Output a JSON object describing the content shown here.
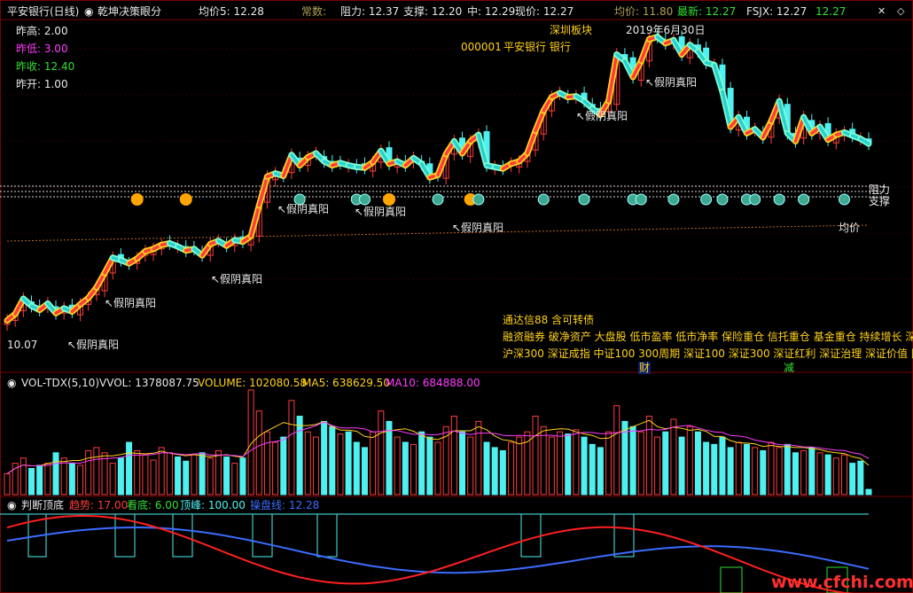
{
  "header": {
    "title": "平安银行(日线)",
    "indicator": "乾坤决策眼分",
    "avg5": "均价5: 12.28",
    "often": "常数:",
    "resist": "阻力: 12.37",
    "support": "支撑: 12.20",
    "mid": "中: 12.29",
    "price": "现价: 12.27",
    "avg": "均价: 11.80",
    "latest": "最新: 12.27",
    "fsjx": "FSJX: 12.27",
    "fsjx2": "12.27"
  },
  "info": {
    "high": "昨高: 2.00",
    "low": "昨低: 3.00",
    "close": "昨收: 12.40",
    "open": "昨开: 1.00"
  },
  "stock": {
    "code": "000001",
    "name": "平安银行 银行",
    "board": "深圳板块",
    "date": "2019年6月30日"
  },
  "annotations": {
    "fake": "↖假阴真阳",
    "start": "10.07",
    "resistance": "阻力",
    "support": "支撑",
    "avg": "均价"
  },
  "concepts": {
    "l1": "通达信88 含可转债",
    "l2": "融资融券 破净资产 大盘股 低市盈率 低市净率 保险重仓 信托重仓 基金重仓 持续增长 深",
    "l3": "沪深300 深证成指 中证100 300周期 深证100 深证300 深证红利 深证治理 深证价值 国",
    "cai": "财",
    "jian": "减"
  },
  "vol_panel": {
    "name": "VOL-TDX(5,10)",
    "vvol": "VVOL: 1378087.75",
    "volume": "VOLUME: 102080.58",
    "ma5": "MA5: 638629.50",
    "ma10": "MA10: 684888.00"
  },
  "judge_panel": {
    "name": "判断顶底",
    "trend": "趋势: 17.00",
    "bottom": "看底: 6.00",
    "top": "顶峰: 100.00",
    "line": "操盘线: 12.28"
  },
  "watermark": "www.cfchi.com",
  "colors": {
    "up": "#ff3c3c",
    "down": "#4ff0f0",
    "yellow": "#ffd21a"
  },
  "chart_data": {
    "type": "line",
    "price_close": [
      10.07,
      10.15,
      10.34,
      10.25,
      10.2,
      10.28,
      10.16,
      10.22,
      10.18,
      10.27,
      10.35,
      10.48,
      10.66,
      10.85,
      10.82,
      10.78,
      10.84,
      10.93,
      10.96,
      11.01,
      11.03,
      10.99,
      10.94,
      10.96,
      10.88,
      11.02,
      11.06,
      11.0,
      11.07,
      11.05,
      11.12,
      11.5,
      11.86,
      11.9,
      11.87,
      12.13,
      12.0,
      12.1,
      12.15,
      12.05,
      12.0,
      12.03,
      12.0,
      11.98,
      11.97,
      12.04,
      12.18,
      12.02,
      12.05,
      12.0,
      12.09,
      12.02,
      11.85,
      11.88,
      12.14,
      12.3,
      12.15,
      12.3,
      12.38,
      12.0,
      11.98,
      11.96,
      12.02,
      12.05,
      12.15,
      12.43,
      12.68,
      12.85,
      12.9,
      12.85,
      12.86,
      12.8,
      12.71,
      12.63,
      12.8,
      13.38,
      13.3,
      13.1,
      13.3,
      13.57,
      13.6,
      13.52,
      13.56,
      13.38,
      13.5,
      13.42,
      13.28,
      13.25,
      12.92,
      12.48,
      12.6,
      12.4,
      12.45,
      12.35,
      12.55,
      12.8,
      12.4,
      12.3,
      12.6,
      12.4,
      12.48,
      12.32,
      12.38,
      12.41,
      12.37,
      12.33,
      12.27
    ],
    "volume": [
      0.2,
      0.3,
      0.35,
      0.25,
      0.28,
      0.3,
      0.4,
      0.35,
      0.3,
      0.28,
      0.42,
      0.45,
      0.4,
      0.3,
      0.35,
      0.5,
      0.42,
      0.38,
      0.33,
      0.45,
      0.4,
      0.36,
      0.32,
      0.38,
      0.4,
      0.35,
      0.42,
      0.36,
      0.3,
      0.35,
      1.0,
      0.8,
      0.6,
      0.5,
      0.55,
      0.9,
      0.75,
      0.6,
      0.55,
      0.7,
      0.65,
      0.58,
      0.6,
      0.5,
      0.45,
      0.6,
      0.8,
      0.7,
      0.55,
      0.5,
      0.48,
      0.6,
      0.55,
      0.5,
      0.65,
      0.75,
      0.6,
      0.55,
      0.7,
      0.5,
      0.45,
      0.42,
      0.5,
      0.55,
      0.6,
      0.75,
      0.65,
      0.55,
      0.6,
      0.58,
      0.62,
      0.55,
      0.48,
      0.45,
      0.6,
      0.85,
      0.7,
      0.65,
      0.6,
      0.75,
      0.55,
      0.6,
      0.72,
      0.55,
      0.65,
      0.6,
      0.5,
      0.48,
      0.55,
      0.45,
      0.5,
      0.48,
      0.45,
      0.42,
      0.5,
      0.45,
      0.48,
      0.4,
      0.42,
      0.45,
      0.4,
      0.38,
      0.35,
      0.38,
      0.3,
      0.32,
      0.05
    ]
  }
}
